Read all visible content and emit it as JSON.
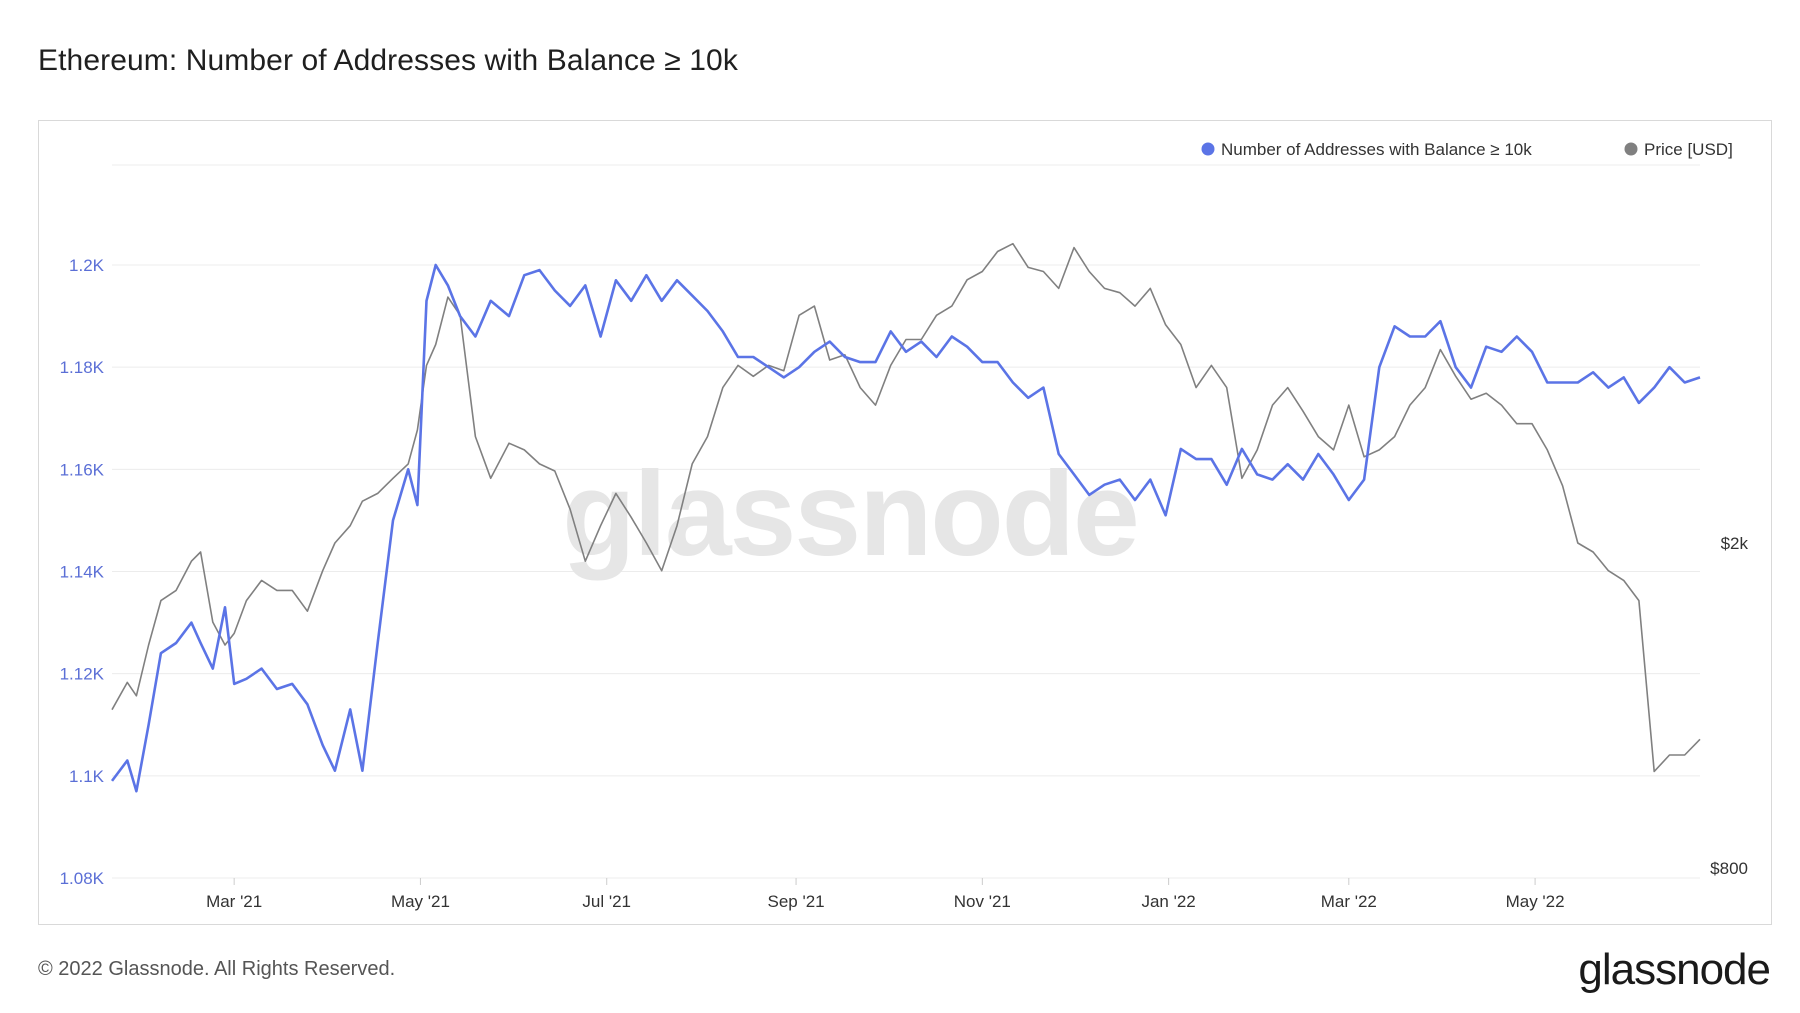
{
  "title": "Ethereum: Number of Addresses with Balance ≥ 10k",
  "footer": "© 2022 Glassnode. All Rights Reserved.",
  "brand": "glassnode",
  "watermark": "glassnode",
  "colors": {
    "addresses": "#5b74e6",
    "price": "#808080",
    "grid": "#ececec"
  },
  "chart_data": {
    "type": "line",
    "title": "Ethereum: Number of Addresses with Balance ≥ 10k",
    "x_ticks": [
      "Mar '21",
      "May '21",
      "Jul '21",
      "Sep '21",
      "Nov '21",
      "Jan '22",
      "Mar '22",
      "May '22"
    ],
    "y_left": {
      "ticks": [
        "1.08K",
        "1.1K",
        "1.12K",
        "1.14K",
        "1.16K",
        "1.18K",
        "1.2K"
      ],
      "ylim": [
        1080,
        1200
      ],
      "tick_values": [
        1080,
        1100,
        1120,
        1140,
        1160,
        1180,
        1200
      ]
    },
    "y_right": {
      "ticks": [
        "$800",
        "$2k"
      ],
      "scale": "log",
      "tick_values": [
        800,
        2000
      ]
    },
    "legend": {
      "position": "top-right",
      "items": [
        "Number of Addresses with Balance ≥ 10k",
        "Price [USD]"
      ]
    },
    "series": [
      {
        "name": "Number of Addresses with Balance ≥ 10k",
        "axis": "left",
        "x": [
          "2021-01-20",
          "2021-01-25",
          "2021-01-28",
          "2021-02-01",
          "2021-02-05",
          "2021-02-10",
          "2021-02-15",
          "2021-02-18",
          "2021-02-22",
          "2021-02-26",
          "2021-03-01",
          "2021-03-05",
          "2021-03-10",
          "2021-03-15",
          "2021-03-20",
          "2021-03-25",
          "2021-03-30",
          "2021-04-03",
          "2021-04-08",
          "2021-04-12",
          "2021-04-17",
          "2021-04-22",
          "2021-04-27",
          "2021-04-30",
          "2021-05-03",
          "2021-05-06",
          "2021-05-10",
          "2021-05-14",
          "2021-05-19",
          "2021-05-24",
          "2021-05-30",
          "2021-06-04",
          "2021-06-09",
          "2021-06-14",
          "2021-06-19",
          "2021-06-24",
          "2021-06-29",
          "2021-07-04",
          "2021-07-09",
          "2021-07-14",
          "2021-07-19",
          "2021-07-24",
          "2021-07-29",
          "2021-08-03",
          "2021-08-08",
          "2021-08-13",
          "2021-08-18",
          "2021-08-23",
          "2021-08-28",
          "2021-09-02",
          "2021-09-07",
          "2021-09-12",
          "2021-09-17",
          "2021-09-22",
          "2021-09-27",
          "2021-10-02",
          "2021-10-07",
          "2021-10-12",
          "2021-10-17",
          "2021-10-22",
          "2021-10-27",
          "2021-11-01",
          "2021-11-06",
          "2021-11-11",
          "2021-11-16",
          "2021-11-21",
          "2021-11-26",
          "2021-12-01",
          "2021-12-06",
          "2021-12-11",
          "2021-12-16",
          "2021-12-21",
          "2021-12-26",
          "2021-12-31",
          "2022-01-05",
          "2022-01-10",
          "2022-01-15",
          "2022-01-20",
          "2022-01-25",
          "2022-01-30",
          "2022-02-04",
          "2022-02-09",
          "2022-02-14",
          "2022-02-19",
          "2022-02-24",
          "2022-03-01",
          "2022-03-06",
          "2022-03-11",
          "2022-03-16",
          "2022-03-21",
          "2022-03-26",
          "2022-03-31",
          "2022-04-05",
          "2022-04-10",
          "2022-04-15",
          "2022-04-20",
          "2022-04-25",
          "2022-04-30",
          "2022-05-05",
          "2022-05-10",
          "2022-05-15",
          "2022-05-20",
          "2022-05-25",
          "2022-05-30",
          "2022-06-04",
          "2022-06-09",
          "2022-06-14",
          "2022-06-19",
          "2022-06-24"
        ],
        "values": [
          1099,
          1103,
          1097,
          1110,
          1124,
          1126,
          1130,
          1126,
          1121,
          1133,
          1118,
          1119,
          1121,
          1117,
          1118,
          1114,
          1106,
          1101,
          1113,
          1101,
          1126,
          1150,
          1160,
          1153,
          1193,
          1200,
          1196,
          1190,
          1186,
          1193,
          1190,
          1198,
          1199,
          1195,
          1192,
          1196,
          1186,
          1197,
          1193,
          1198,
          1193,
          1197,
          1194,
          1191,
          1187,
          1182,
          1182,
          1180,
          1178,
          1180,
          1183,
          1185,
          1182,
          1181,
          1181,
          1187,
          1183,
          1185,
          1182,
          1186,
          1184,
          1181,
          1181,
          1177,
          1174,
          1176,
          1163,
          1159,
          1155,
          1157,
          1158,
          1154,
          1158,
          1151,
          1164,
          1162,
          1162,
          1157,
          1164,
          1159,
          1158,
          1161,
          1158,
          1163,
          1159,
          1154,
          1158,
          1180,
          1188,
          1186,
          1186,
          1189,
          1180,
          1176,
          1184,
          1183,
          1186,
          1183,
          1177,
          1177,
          1177,
          1179,
          1176,
          1178,
          1173,
          1176,
          1180,
          1177,
          1178
        ]
      },
      {
        "name": "Price [USD]",
        "axis": "right",
        "x": [
          "2021-01-20",
          "2021-01-25",
          "2021-01-28",
          "2021-02-01",
          "2021-02-05",
          "2021-02-10",
          "2021-02-15",
          "2021-02-18",
          "2021-02-22",
          "2021-02-26",
          "2021-03-01",
          "2021-03-05",
          "2021-03-10",
          "2021-03-15",
          "2021-03-20",
          "2021-03-25",
          "2021-03-30",
          "2021-04-03",
          "2021-04-08",
          "2021-04-12",
          "2021-04-17",
          "2021-04-22",
          "2021-04-27",
          "2021-04-30",
          "2021-05-03",
          "2021-05-06",
          "2021-05-10",
          "2021-05-14",
          "2021-05-19",
          "2021-05-24",
          "2021-05-30",
          "2021-06-04",
          "2021-06-09",
          "2021-06-14",
          "2021-06-19",
          "2021-06-24",
          "2021-06-29",
          "2021-07-04",
          "2021-07-09",
          "2021-07-14",
          "2021-07-19",
          "2021-07-24",
          "2021-07-29",
          "2021-08-03",
          "2021-08-08",
          "2021-08-13",
          "2021-08-18",
          "2021-08-23",
          "2021-08-28",
          "2021-09-02",
          "2021-09-07",
          "2021-09-12",
          "2021-09-17",
          "2021-09-22",
          "2021-09-27",
          "2021-10-02",
          "2021-10-07",
          "2021-10-12",
          "2021-10-17",
          "2021-10-22",
          "2021-10-27",
          "2021-11-01",
          "2021-11-06",
          "2021-11-11",
          "2021-11-16",
          "2021-11-21",
          "2021-11-26",
          "2021-12-01",
          "2021-12-06",
          "2021-12-11",
          "2021-12-16",
          "2021-12-21",
          "2021-12-26",
          "2021-12-31",
          "2022-01-05",
          "2022-01-10",
          "2022-01-15",
          "2022-01-20",
          "2022-01-25",
          "2022-01-30",
          "2022-02-04",
          "2022-02-09",
          "2022-02-14",
          "2022-02-19",
          "2022-02-24",
          "2022-03-01",
          "2022-03-06",
          "2022-03-11",
          "2022-03-16",
          "2022-03-21",
          "2022-03-26",
          "2022-03-31",
          "2022-04-05",
          "2022-04-10",
          "2022-04-15",
          "2022-04-20",
          "2022-04-25",
          "2022-04-30",
          "2022-05-05",
          "2022-05-10",
          "2022-05-15",
          "2022-05-20",
          "2022-05-25",
          "2022-05-30",
          "2022-06-04",
          "2022-06-09",
          "2022-06-14",
          "2022-06-19",
          "2022-06-24"
        ],
        "values": [
          1250,
          1350,
          1300,
          1500,
          1700,
          1750,
          1900,
          1950,
          1600,
          1500,
          1550,
          1700,
          1800,
          1750,
          1750,
          1650,
          1850,
          2000,
          2100,
          2250,
          2300,
          2400,
          2500,
          2750,
          3300,
          3500,
          4000,
          3800,
          2700,
          2400,
          2650,
          2600,
          2500,
          2450,
          2200,
          1900,
          2100,
          2300,
          2150,
          2000,
          1850,
          2100,
          2500,
          2700,
          3100,
          3300,
          3200,
          3300,
          3250,
          3800,
          3900,
          3350,
          3400,
          3100,
          2950,
          3300,
          3550,
          3550,
          3800,
          3900,
          4200,
          4300,
          4550,
          4650,
          4350,
          4300,
          4100,
          4600,
          4300,
          4100,
          4050,
          3900,
          4100,
          3700,
          3500,
          3100,
          3300,
          3100,
          2400,
          2600,
          2950,
          3100,
          2900,
          2700,
          2600,
          2950,
          2550,
          2600,
          2700,
          2950,
          3100,
          3450,
          3200,
          3000,
          3050,
          2950,
          2800,
          2800,
          2600,
          2350,
          2000,
          1950,
          1850,
          1800,
          1700,
          1050,
          1100,
          1100,
          1150
        ]
      }
    ]
  }
}
